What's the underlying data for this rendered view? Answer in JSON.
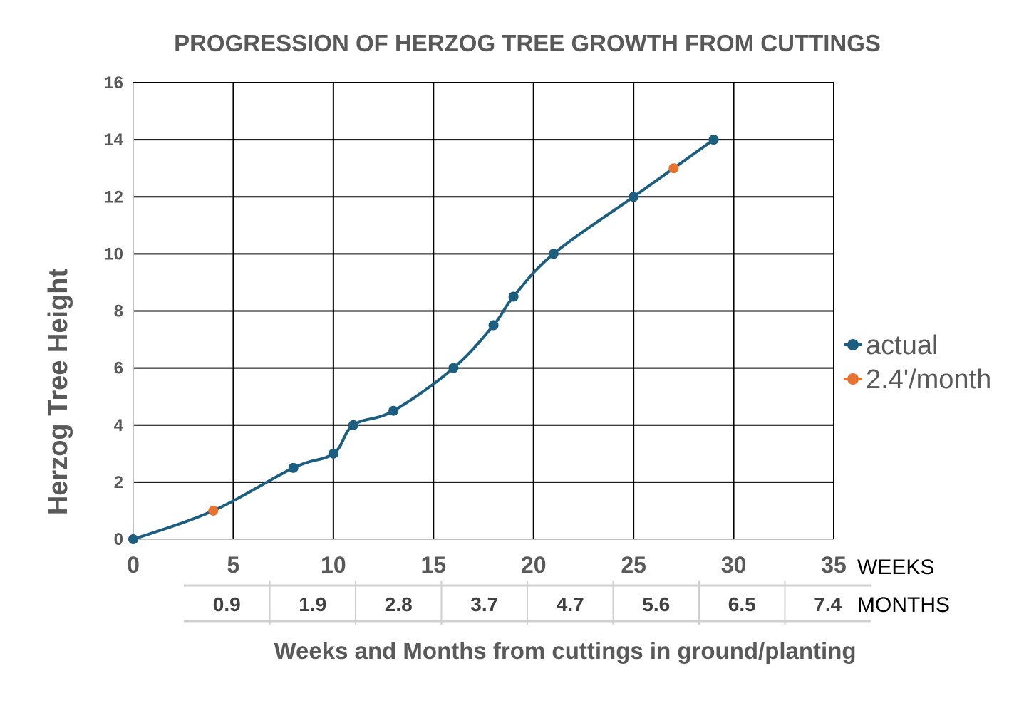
{
  "chart_data": {
    "type": "line",
    "title": "PROGRESSION OF HERZOG TREE GROWTH FROM CUTTINGS",
    "xlabel": "Weeks and Months from cuttings in ground/planting",
    "ylabel": "Herzog Tree Height",
    "x_unit_label": "WEEKS",
    "secondary_x_unit_label": "MONTHS",
    "xlim": [
      0,
      35
    ],
    "ylim": [
      0,
      16
    ],
    "x_ticks": [
      "0",
      "5",
      "10",
      "15",
      "20",
      "25",
      "30",
      "35"
    ],
    "y_ticks": [
      "0",
      "2",
      "4",
      "6",
      "8",
      "10",
      "12",
      "14",
      "16"
    ],
    "secondary_x_ticks": [
      "0.9",
      "1.9",
      "2.8",
      "3.7",
      "4.7",
      "5.6",
      "6.5",
      "7.4"
    ],
    "grid": true,
    "legend_position": "right",
    "series": [
      {
        "name": "actual",
        "color": "#1b5e80",
        "points": [
          [
            0,
            0
          ],
          [
            4,
            1
          ],
          [
            8,
            2.5
          ],
          [
            10,
            3
          ],
          [
            11,
            4
          ],
          [
            13,
            4.5
          ],
          [
            16,
            6
          ],
          [
            18,
            7.5
          ],
          [
            19,
            8.5
          ],
          [
            21,
            10
          ],
          [
            25,
            12
          ],
          [
            27,
            13
          ],
          [
            29,
            14
          ]
        ],
        "markers": [
          [
            0,
            0
          ],
          [
            8,
            2.5
          ],
          [
            10,
            3
          ],
          [
            11,
            4
          ],
          [
            13,
            4.5
          ],
          [
            16,
            6
          ],
          [
            18,
            7.5
          ],
          [
            19,
            8.5
          ],
          [
            21,
            10
          ],
          [
            25,
            12
          ],
          [
            29,
            14
          ]
        ]
      },
      {
        "name": "2.4'/month",
        "color": "#e87331",
        "points": [
          [
            4,
            1
          ],
          [
            27,
            13
          ]
        ]
      }
    ]
  }
}
